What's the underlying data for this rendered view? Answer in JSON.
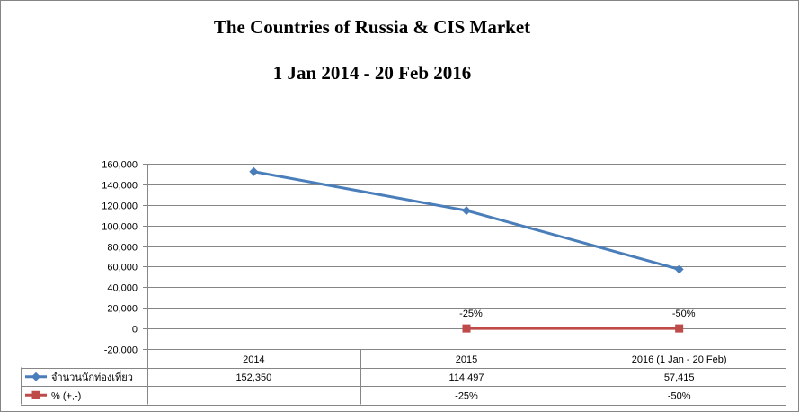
{
  "chart_data": {
    "type": "line",
    "title": "The Countries of Russia & CIS Market",
    "subtitle": "1 Jan 2014 - 20 Feb 2016",
    "categories": [
      "2014",
      "2015",
      "2016 (1 Jan - 20 Feb)"
    ],
    "ylim": [
      -20000,
      160000
    ],
    "yticks": [
      -20000,
      0,
      20000,
      40000,
      60000,
      80000,
      100000,
      120000,
      140000,
      160000
    ],
    "ytick_labels": [
      "-20,000",
      "0",
      "20,000",
      "40,000",
      "60,000",
      "80,000",
      "100,000",
      "120,000",
      "140,000",
      "160,000"
    ],
    "grid": true,
    "legend": "data-table",
    "series": [
      {
        "name": "จำนวนนักท่องเที่ยว",
        "values": [
          152350,
          114497,
          57415
        ],
        "table_values": [
          "152,350",
          "114,497",
          "57,415"
        ],
        "labels": [
          "",
          "",
          ""
        ],
        "color": "#4A7EBB",
        "marker": "diamond"
      },
      {
        "name": "% (+,-)",
        "values": [
          null,
          0,
          0
        ],
        "table_values": [
          "",
          "-25%",
          "-50%"
        ],
        "labels": [
          "",
          "-25%",
          "-50%"
        ],
        "color": "#BE4B48",
        "marker": "square"
      }
    ]
  }
}
